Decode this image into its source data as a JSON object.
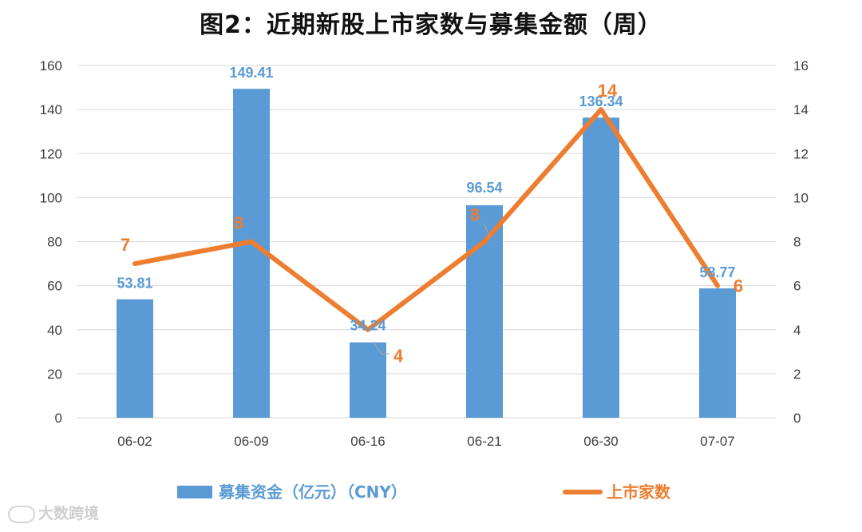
{
  "title": "图2：近期新股上市家数与募集金额（周）",
  "watermark": "大数跨境",
  "colors": {
    "bar": "#5B9BD5",
    "line": "#ED7D31",
    "grid": "#D9D9D9",
    "axis_text": "#404040"
  },
  "chart_data": {
    "type": "bar",
    "title": "图2：近期新股上市家数与募集金额（周）",
    "categories": [
      "06-02",
      "06-09",
      "06-16",
      "06-21",
      "06-30",
      "07-07"
    ],
    "series": [
      {
        "name": "募集资金（亿元）（CNY）",
        "type": "bar",
        "axis": "left",
        "values": [
          53.81,
          149.41,
          34.24,
          96.54,
          136.34,
          58.77
        ],
        "labels": [
          "53.81",
          "149.41",
          "34.24",
          "96.54",
          "136.34",
          "58.77"
        ]
      },
      {
        "name": "上市家数",
        "type": "line",
        "axis": "right",
        "values": [
          7,
          8,
          4,
          8,
          14,
          6
        ],
        "labels": [
          "7",
          "8",
          "4",
          "8",
          "14",
          "6"
        ]
      }
    ],
    "y_left": {
      "lim": [
        0,
        160
      ],
      "ticks": [
        "0",
        "20",
        "40",
        "60",
        "80",
        "100",
        "120",
        "140",
        "160"
      ]
    },
    "y_right": {
      "lim": [
        0,
        16
      ],
      "ticks": [
        "0",
        "2",
        "4",
        "6",
        "8",
        "10",
        "12",
        "14",
        "16"
      ]
    },
    "grid": true,
    "legend_position": "bottom"
  }
}
